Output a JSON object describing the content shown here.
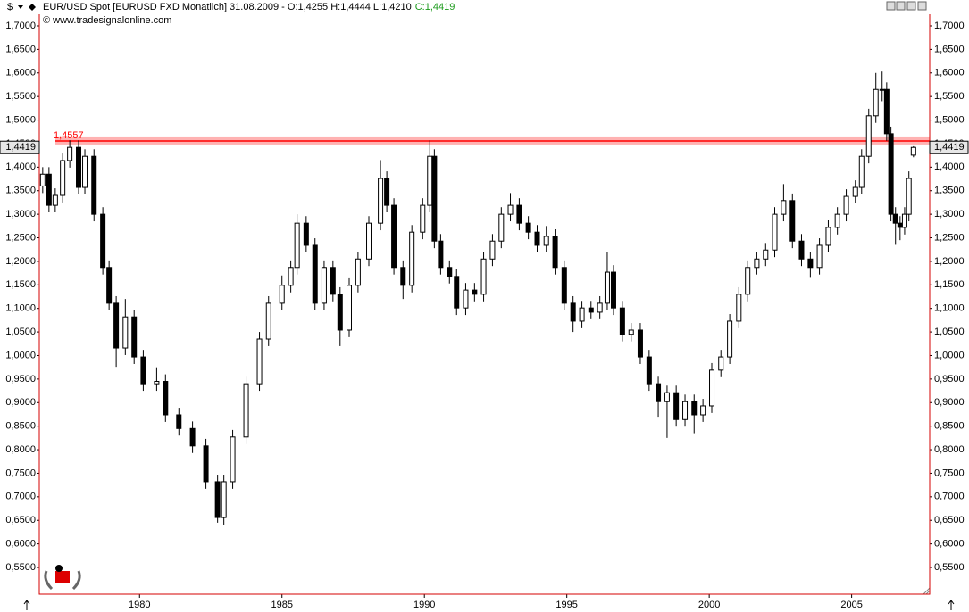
{
  "chart_data": {
    "type": "candlestick",
    "title": "EUR/USD Spot [EURUSD FXD  Monatlich] 31.08.2009 - O:1,4255 H:1,4444 L:1,4210",
    "close_label": "C:1,4419",
    "source": "© www.tradesignalonline.com",
    "y_label": "$",
    "up_color": "#ffffff",
    "down_color": "#000000",
    "frame_color": "#d40000",
    "level_line": {
      "value": 1.4557,
      "label": "1,4557",
      "color": "#ff0000"
    },
    "last_price": {
      "value": 1.4419,
      "label": "1,4419"
    },
    "xlim": [
      1976.48,
      2007.74
    ],
    "xticks": [
      1980,
      1985,
      1990,
      1995,
      2000,
      2005
    ],
    "ylim": [
      0.4932,
      1.7246
    ],
    "yticks": [
      {
        "value": 0.55,
        "label": "0,5500"
      },
      {
        "value": 0.6,
        "label": "0,6000"
      },
      {
        "value": 0.65,
        "label": "0,6500"
      },
      {
        "value": 0.7,
        "label": "0,7000"
      },
      {
        "value": 0.75,
        "label": "0,7500"
      },
      {
        "value": 0.8,
        "label": "0,8000"
      },
      {
        "value": 0.85,
        "label": "0,8500"
      },
      {
        "value": 0.9,
        "label": "0,9000"
      },
      {
        "value": 0.95,
        "label": "0,9500"
      },
      {
        "value": 1.0,
        "label": "1,0000"
      },
      {
        "value": 1.05,
        "label": "1,0500"
      },
      {
        "value": 1.1,
        "label": "1,1000"
      },
      {
        "value": 1.15,
        "label": "1,1500"
      },
      {
        "value": 1.2,
        "label": "1,2000"
      },
      {
        "value": 1.25,
        "label": "1,2500"
      },
      {
        "value": 1.3,
        "label": "1,3000"
      },
      {
        "value": 1.35,
        "label": "1,3500"
      },
      {
        "value": 1.4,
        "label": "1,4000"
      },
      {
        "value": 1.45,
        "label": "1,4500"
      },
      {
        "value": 1.5,
        "label": "1,5000"
      },
      {
        "value": 1.55,
        "label": "1,5500"
      },
      {
        "value": 1.6,
        "label": "1,6000"
      },
      {
        "value": 1.65,
        "label": "1,6500"
      },
      {
        "value": 1.7,
        "label": "1,7000"
      }
    ],
    "x": [
      1976.6,
      1976.82,
      1977.04,
      1977.3,
      1977.55,
      1977.86,
      1978.08,
      1978.4,
      1978.71,
      1978.93,
      1979.18,
      1979.5,
      1979.81,
      1980.13,
      1980.6,
      1980.91,
      1981.38,
      1981.86,
      1982.33,
      1982.74,
      1982.96,
      1983.27,
      1983.74,
      1984.21,
      1984.53,
      1985.0,
      1985.31,
      1985.53,
      1985.85,
      1986.16,
      1986.48,
      1986.79,
      1987.04,
      1987.36,
      1987.67,
      1988.05,
      1988.46,
      1988.68,
      1988.93,
      1989.25,
      1989.56,
      1989.94,
      1990.19,
      1990.35,
      1990.57,
      1990.88,
      1991.13,
      1991.45,
      1991.76,
      1992.08,
      1992.39,
      1992.7,
      1993.02,
      1993.33,
      1993.65,
      1993.96,
      1994.28,
      1994.59,
      1994.91,
      1995.22,
      1995.53,
      1995.85,
      1996.16,
      1996.42,
      1996.64,
      1996.95,
      1997.26,
      1997.58,
      1997.89,
      1998.21,
      1998.52,
      1998.84,
      1999.15,
      1999.47,
      1999.78,
      2000.09,
      2000.41,
      2000.72,
      2001.04,
      2001.35,
      2001.67,
      2001.98,
      2002.3,
      2002.61,
      2002.92,
      2003.24,
      2003.55,
      2003.87,
      2004.18,
      2004.5,
      2004.81,
      2005.13,
      2005.35,
      2005.6,
      2005.85,
      2006.07,
      2006.23,
      2006.38,
      2006.54,
      2006.7,
      2006.86,
      2007.01,
      2007.17
    ],
    "open": [
      1.36,
      1.385,
      1.319,
      1.34,
      1.414,
      1.442,
      1.357,
      1.423,
      1.3,
      1.187,
      1.111,
      1.016,
      1.082,
      0.997,
      0.94,
      0.945,
      0.874,
      0.845,
      0.808,
      0.732,
      0.656,
      0.732,
      0.827,
      0.94,
      1.035,
      1.111,
      1.149,
      1.187,
      1.281,
      1.234,
      1.111,
      1.187,
      1.13,
      1.054,
      1.149,
      1.205,
      1.281,
      1.376,
      1.319,
      1.187,
      1.149,
      1.262,
      1.319,
      1.423,
      1.243,
      1.187,
      1.168,
      1.101,
      1.139,
      1.13,
      1.205,
      1.243,
      1.3,
      1.319,
      1.281,
      1.262,
      1.234,
      1.253,
      1.187,
      1.111,
      1.073,
      1.101,
      1.092,
      1.111,
      1.177,
      1.101,
      1.045,
      1.054,
      0.997,
      0.94,
      0.902,
      0.921,
      0.864,
      0.902,
      0.874,
      0.893,
      0.969,
      0.997,
      1.073,
      1.13,
      1.187,
      1.205,
      1.224,
      1.3,
      1.329,
      1.243,
      1.205,
      1.187,
      1.234,
      1.272,
      1.3,
      1.338,
      1.357,
      1.423,
      1.509,
      1.565,
      1.565,
      1.471,
      1.3,
      1.281,
      1.272,
      1.3,
      1.4255
    ],
    "high": [
      1.4,
      1.4,
      1.355,
      1.429,
      1.457,
      1.457,
      1.438,
      1.438,
      1.315,
      1.202,
      1.126,
      1.12,
      1.097,
      1.012,
      0.975,
      0.96,
      0.889,
      0.86,
      0.823,
      0.747,
      0.747,
      0.842,
      0.955,
      1.05,
      1.126,
      1.17,
      1.202,
      1.3,
      1.296,
      1.249,
      1.202,
      1.202,
      1.145,
      1.164,
      1.22,
      1.296,
      1.415,
      1.391,
      1.334,
      1.202,
      1.277,
      1.334,
      1.457,
      1.438,
      1.258,
      1.202,
      1.183,
      1.154,
      1.154,
      1.22,
      1.258,
      1.315,
      1.345,
      1.334,
      1.296,
      1.277,
      1.275,
      1.268,
      1.202,
      1.126,
      1.116,
      1.116,
      1.126,
      1.22,
      1.192,
      1.116,
      1.069,
      1.069,
      1.012,
      0.955,
      0.936,
      0.936,
      0.917,
      0.917,
      0.908,
      0.984,
      1.012,
      1.088,
      1.145,
      1.202,
      1.22,
      1.239,
      1.315,
      1.364,
      1.344,
      1.258,
      1.22,
      1.249,
      1.287,
      1.315,
      1.353,
      1.372,
      1.438,
      1.524,
      1.6,
      1.603,
      1.58,
      1.486,
      1.315,
      1.296,
      1.315,
      1.391,
      1.4444
    ],
    "low": [
      1.345,
      1.304,
      1.304,
      1.325,
      1.399,
      1.342,
      1.342,
      1.285,
      1.172,
      1.096,
      0.976,
      1.001,
      0.982,
      0.925,
      0.925,
      0.859,
      0.83,
      0.793,
      0.717,
      0.645,
      0.641,
      0.717,
      0.812,
      0.925,
      1.02,
      1.096,
      1.134,
      1.172,
      1.219,
      1.096,
      1.096,
      1.115,
      1.02,
      1.039,
      1.134,
      1.19,
      1.266,
      1.304,
      1.172,
      1.12,
      1.134,
      1.247,
      1.304,
      1.228,
      1.172,
      1.153,
      1.086,
      1.086,
      1.115,
      1.115,
      1.19,
      1.228,
      1.285,
      1.266,
      1.247,
      1.219,
      1.219,
      1.172,
      1.096,
      1.05,
      1.058,
      1.077,
      1.077,
      1.096,
      1.086,
      1.03,
      1.03,
      0.982,
      0.925,
      0.87,
      0.825,
      0.849,
      0.849,
      0.835,
      0.859,
      0.878,
      0.954,
      0.982,
      1.058,
      1.115,
      1.172,
      1.19,
      1.209,
      1.285,
      1.228,
      1.19,
      1.165,
      1.172,
      1.219,
      1.257,
      1.285,
      1.323,
      1.342,
      1.408,
      1.494,
      1.54,
      1.456,
      1.285,
      1.235,
      1.245,
      1.257,
      1.285,
      1.421
    ],
    "close": [
      1.385,
      1.319,
      1.34,
      1.414,
      1.442,
      1.357,
      1.423,
      1.3,
      1.187,
      1.111,
      1.016,
      1.082,
      0.997,
      0.94,
      0.945,
      0.874,
      0.845,
      0.808,
      0.732,
      0.656,
      0.732,
      0.827,
      0.94,
      1.035,
      1.111,
      1.149,
      1.187,
      1.281,
      1.234,
      1.111,
      1.187,
      1.13,
      1.054,
      1.149,
      1.205,
      1.281,
      1.376,
      1.319,
      1.187,
      1.149,
      1.262,
      1.319,
      1.423,
      1.243,
      1.187,
      1.168,
      1.101,
      1.139,
      1.13,
      1.205,
      1.243,
      1.3,
      1.319,
      1.281,
      1.262,
      1.234,
      1.253,
      1.187,
      1.111,
      1.073,
      1.101,
      1.092,
      1.111,
      1.177,
      1.101,
      1.045,
      1.054,
      0.997,
      0.94,
      0.902,
      0.921,
      0.864,
      0.902,
      0.874,
      0.893,
      0.969,
      0.997,
      1.073,
      1.13,
      1.187,
      1.205,
      1.224,
      1.3,
      1.329,
      1.243,
      1.205,
      1.187,
      1.234,
      1.272,
      1.3,
      1.338,
      1.357,
      1.423,
      1.509,
      1.565,
      1.565,
      1.471,
      1.3,
      1.281,
      1.272,
      1.3,
      1.376,
      1.4419
    ]
  }
}
